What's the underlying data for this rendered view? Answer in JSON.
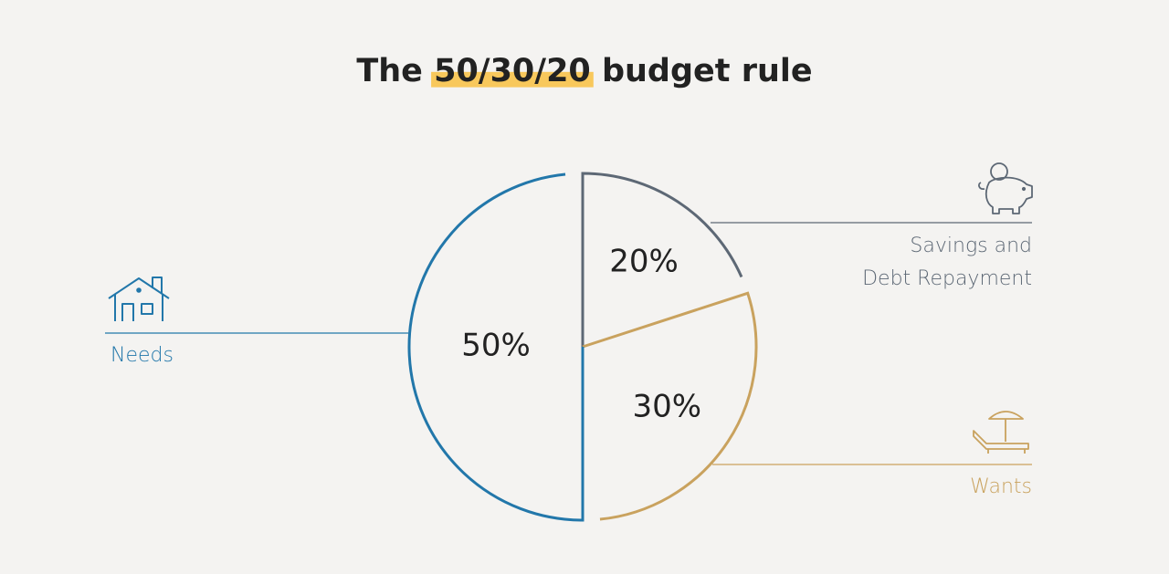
{
  "chart_data": {
    "type": "pie",
    "title": "The 50/30/20 budget rule",
    "categories": [
      "Savings and\nDebt Repayment",
      "Wants",
      "Needs"
    ],
    "values": [
      20,
      30,
      50
    ],
    "value_labels": [
      "20%",
      "30%",
      "50%"
    ],
    "colors": [
      "#5d6875",
      "#c9a25e",
      "#2277aa"
    ]
  }
}
